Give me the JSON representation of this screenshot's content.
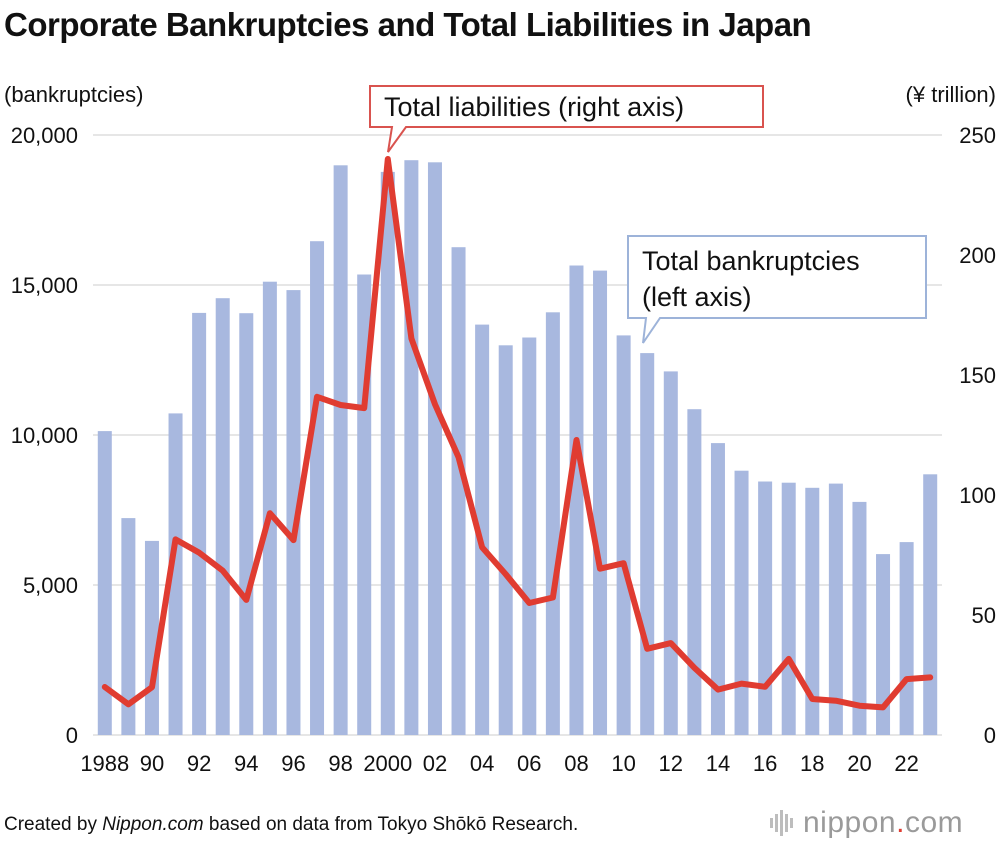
{
  "title": "Corporate Bankruptcies and Total Liabilities in Japan",
  "left_axis_unit": "(bankruptcies)",
  "right_axis_unit": "(¥ trillion)",
  "footer": {
    "prefix": "Created by ",
    "site": "Nippon.com",
    "suffix": " based on data from Tokyo Shōkō Research."
  },
  "brand": {
    "name": "nippon",
    "dot": ".",
    "tld": "com"
  },
  "colors": {
    "bar": "#a8b8df",
    "line": "#e03c31",
    "grid": "#cccccc",
    "callout_line_border": "#d9534f",
    "callout_bar_border": "#9db3d9"
  },
  "chart_data": {
    "type": "bar+line",
    "categories": [
      "1988",
      "89",
      "90",
      "91",
      "92",
      "93",
      "94",
      "95",
      "96",
      "97",
      "98",
      "99",
      "2000",
      "01",
      "02",
      "03",
      "04",
      "05",
      "06",
      "07",
      "08",
      "09",
      "10",
      "11",
      "12",
      "13",
      "14",
      "15",
      "16",
      "17",
      "18",
      "19",
      "20",
      "21",
      "22",
      "23"
    ],
    "x_tick_labels": [
      "1988",
      "90",
      "92",
      "94",
      "96",
      "98",
      "2000",
      "02",
      "04",
      "06",
      "08",
      "10",
      "12",
      "14",
      "16",
      "18",
      "20",
      "22"
    ],
    "series": [
      {
        "name": "Total bankruptcies",
        "axis": "left",
        "type": "bar",
        "values": [
          10130,
          7230,
          6470,
          10720,
          14070,
          14560,
          14060,
          15110,
          14830,
          16460,
          18990,
          15350,
          18770,
          19160,
          19090,
          16260,
          13680,
          12990,
          13250,
          14090,
          15650,
          15480,
          13320,
          12730,
          12120,
          10860,
          9730,
          8810,
          8450,
          8410,
          8240,
          8380,
          7770,
          6030,
          6430,
          8690
        ]
      },
      {
        "name": "Total liabilities",
        "axis": "right",
        "type": "line",
        "values": [
          20.0,
          12.8,
          19.9,
          81.5,
          76.0,
          68.5,
          56.3,
          92.4,
          81.2,
          140.9,
          137.5,
          136.2,
          240.0,
          165.2,
          137.8,
          115.8,
          78.2,
          67.0,
          55.0,
          57.3,
          122.9,
          69.3,
          71.6,
          35.9,
          38.3,
          28.0,
          18.9,
          21.4,
          20.1,
          31.7,
          15.0,
          14.3,
          12.2,
          11.5,
          23.3,
          24.0
        ]
      }
    ],
    "left_axis": {
      "min": 0,
      "max": 20000,
      "ticks": [
        0,
        5000,
        10000,
        15000,
        20000
      ],
      "tick_labels": [
        "0",
        "5,000",
        "10,000",
        "15,000",
        "20,000"
      ]
    },
    "right_axis": {
      "min": 0,
      "max": 250,
      "ticks": [
        0,
        50,
        100,
        150,
        200,
        250
      ],
      "tick_labels": [
        "0",
        "50",
        "100",
        "150",
        "200",
        "250"
      ]
    },
    "annotations": {
      "liabilities": "Total liabilities (right axis)",
      "bankruptcies_line1": "Total bankruptcies",
      "bankruptcies_line2": "(left axis)"
    },
    "grid": true
  }
}
